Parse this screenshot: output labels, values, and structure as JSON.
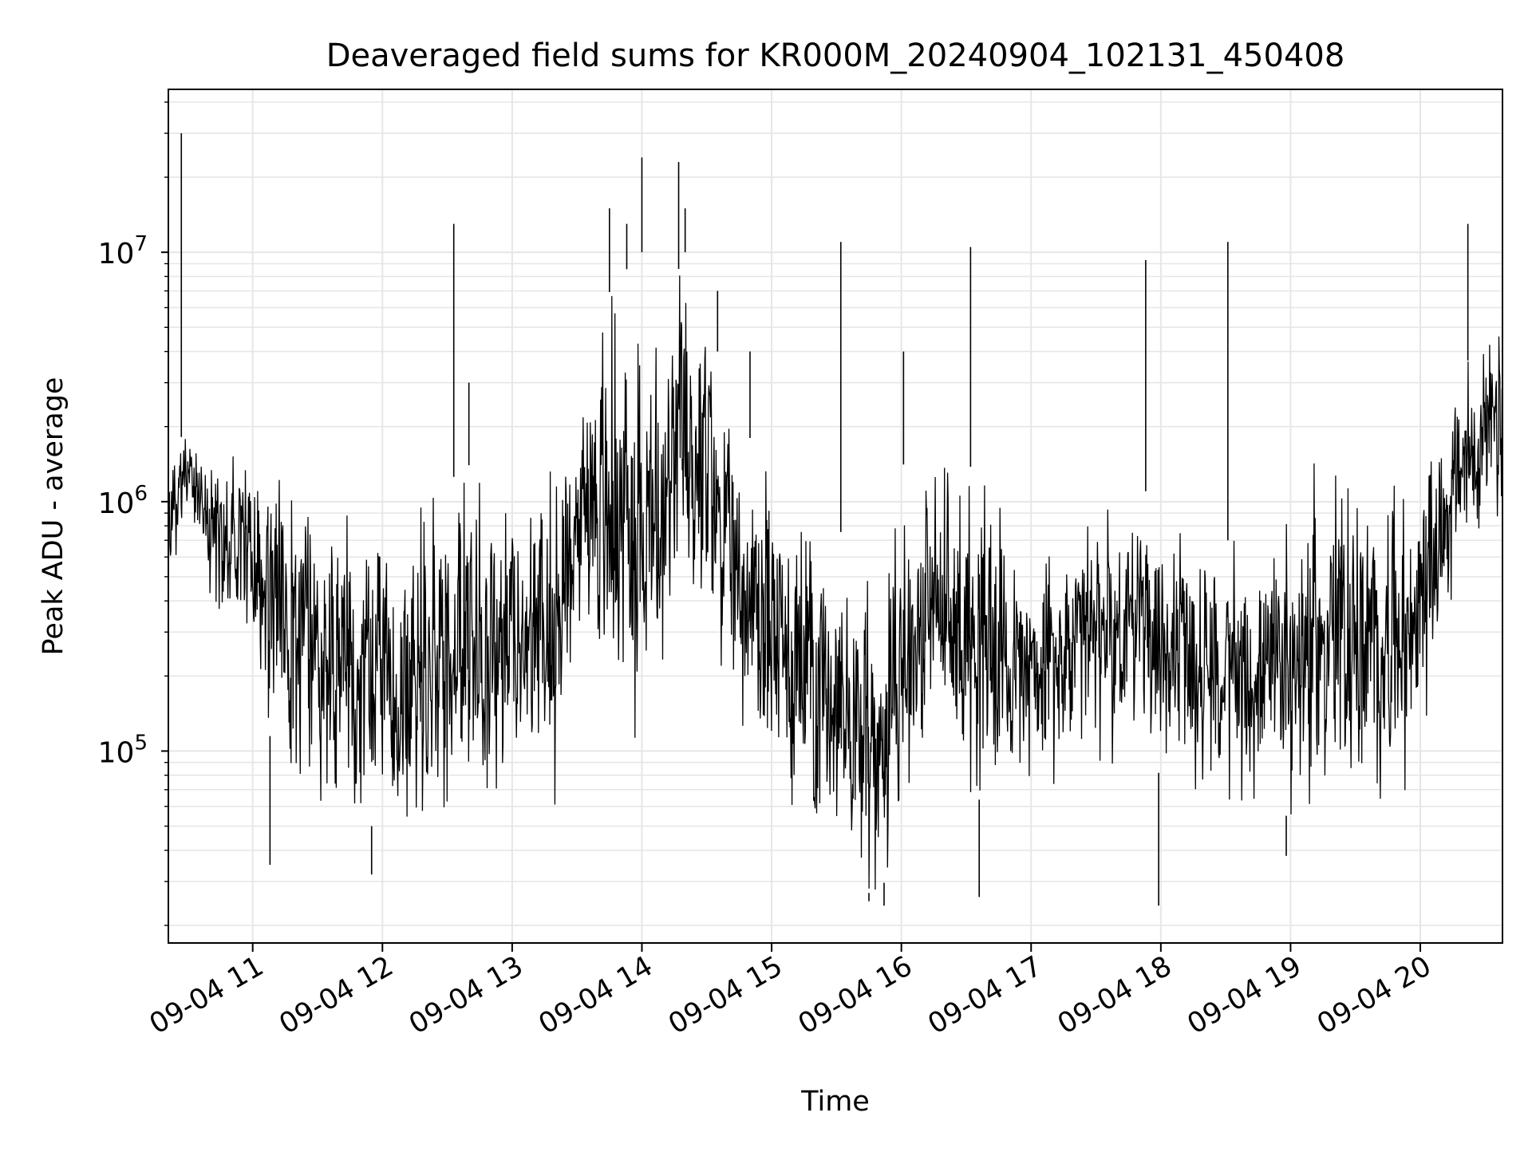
{
  "chart_data": {
    "type": "line",
    "title": "Deaveraged field sums for KR000M_20240904_102131_450408",
    "xlabel": "Time",
    "ylabel": "Peak ADU - average",
    "yscale": "log",
    "ylim": [
      17000,
      45000000
    ],
    "xlim": [
      "2024-09-04 10:21",
      "2024-09-04 20:38"
    ],
    "grid": true,
    "line_color": "#000000",
    "x_tick_labels": [
      "09-04 11",
      "09-04 12",
      "09-04 13",
      "09-04 14",
      "09-04 15",
      "09-04 16",
      "09-04 17",
      "09-04 18",
      "09-04 19",
      "09-04 20"
    ],
    "x_tick_values": [
      "2024-09-04 11:00",
      "2024-09-04 12:00",
      "2024-09-04 13:00",
      "2024-09-04 14:00",
      "2024-09-04 15:00",
      "2024-09-04 16:00",
      "2024-09-04 17:00",
      "2024-09-04 18:00",
      "2024-09-04 19:00",
      "2024-09-04 20:00"
    ],
    "y_ticks": [
      {
        "value": 100000,
        "base": "10",
        "exp": "5"
      },
      {
        "value": 1000000,
        "base": "10",
        "exp": "6"
      },
      {
        "value": 10000000,
        "base": "10",
        "exp": "7"
      }
    ],
    "series": [
      {
        "values_note_envelope": true,
        "x": [
          "2024-09-04 10:21",
          "2024-09-04 10:30",
          "2024-09-04 10:40",
          "2024-09-04 10:50",
          "2024-09-04 11:00",
          "2024-09-04 11:10",
          "2024-09-04 11:20",
          "2024-09-04 11:30",
          "2024-09-04 11:40",
          "2024-09-04 11:50",
          "2024-09-04 12:00",
          "2024-09-04 12:10",
          "2024-09-04 12:20",
          "2024-09-04 12:30",
          "2024-09-04 12:40",
          "2024-09-04 12:50",
          "2024-09-04 13:00",
          "2024-09-04 13:10",
          "2024-09-04 13:20",
          "2024-09-04 13:30",
          "2024-09-04 13:40",
          "2024-09-04 13:50",
          "2024-09-04 14:00",
          "2024-09-04 14:10",
          "2024-09-04 14:20",
          "2024-09-04 14:30",
          "2024-09-04 14:40",
          "2024-09-04 14:50",
          "2024-09-04 15:00",
          "2024-09-04 15:10",
          "2024-09-04 15:20",
          "2024-09-04 15:30",
          "2024-09-04 15:40",
          "2024-09-04 15:50",
          "2024-09-04 16:00",
          "2024-09-04 16:10",
          "2024-09-04 16:20",
          "2024-09-04 16:30",
          "2024-09-04 16:40",
          "2024-09-04 16:50",
          "2024-09-04 17:00",
          "2024-09-04 17:10",
          "2024-09-04 17:20",
          "2024-09-04 17:30",
          "2024-09-04 17:40",
          "2024-09-04 17:50",
          "2024-09-04 18:00",
          "2024-09-04 18:10",
          "2024-09-04 18:20",
          "2024-09-04 18:30",
          "2024-09-04 18:40",
          "2024-09-04 18:50",
          "2024-09-04 19:00",
          "2024-09-04 19:10",
          "2024-09-04 19:20",
          "2024-09-04 19:30",
          "2024-09-04 19:40",
          "2024-09-04 19:50",
          "2024-09-04 20:00",
          "2024-09-04 20:10",
          "2024-09-04 20:20",
          "2024-09-04 20:30",
          "2024-09-04 20:38"
        ],
        "low": [
          400000,
          1000000,
          400000,
          300000,
          200000,
          100000,
          50000,
          45000,
          50000,
          50000,
          50000,
          50000,
          50000,
          55000,
          60000,
          60000,
          60000,
          60000,
          60000,
          300000,
          200000,
          100000,
          100000,
          100000,
          300000,
          250000,
          200000,
          100000,
          60000,
          50000,
          45000,
          40000,
          28000,
          26000,
          50000,
          80000,
          80000,
          70000,
          60000,
          70000,
          60000,
          60000,
          70000,
          80000,
          90000,
          100000,
          80000,
          70000,
          60000,
          60000,
          60000,
          55000,
          55000,
          55000,
          60000,
          60000,
          60000,
          60000,
          100000,
          300000,
          500000,
          800000,
          700000
        ],
        "high": [
          1500000,
          2000000,
          1600000,
          1600000,
          1500000,
          1400000,
          1200000,
          1200000,
          1100000,
          1000000,
          900000,
          900000,
          1000000,
          1200000,
          1400000,
          1200000,
          1300000,
          1400000,
          1400000,
          3000000,
          6000000,
          8000000,
          10000000,
          6000000,
          10000000,
          8000000,
          2000000,
          1800000,
          1500000,
          1200000,
          1000000,
          800000,
          600000,
          400000,
          1400000,
          1500000,
          1500000,
          1400000,
          1300000,
          900000,
          700000,
          800000,
          900000,
          1000000,
          1000000,
          1200000,
          900000,
          800000,
          700000,
          700000,
          700000,
          700000,
          1000000,
          1500000,
          1400000,
          1300000,
          1200000,
          1300000,
          1700000,
          2500000,
          3500000,
          4500000,
          5000000
        ]
      }
    ],
    "spikes": [
      {
        "x": "2024-09-04 10:27",
        "y": 30000000
      },
      {
        "x": "2024-09-04 12:33",
        "y": 13000000
      },
      {
        "x": "2024-09-04 12:40",
        "y": 3000000
      },
      {
        "x": "2024-09-04 13:45",
        "y": 15000000
      },
      {
        "x": "2024-09-04 13:53",
        "y": 13000000
      },
      {
        "x": "2024-09-04 14:00",
        "y": 24000000
      },
      {
        "x": "2024-09-04 14:17",
        "y": 23000000
      },
      {
        "x": "2024-09-04 14:20",
        "y": 15000000
      },
      {
        "x": "2024-09-04 14:35",
        "y": 7000000
      },
      {
        "x": "2024-09-04 14:50",
        "y": 4000000
      },
      {
        "x": "2024-09-04 15:32",
        "y": 11000000
      },
      {
        "x": "2024-09-04 16:01",
        "y": 4000000
      },
      {
        "x": "2024-09-04 16:32",
        "y": 10500000
      },
      {
        "x": "2024-09-04 17:53",
        "y": 9300000
      },
      {
        "x": "2024-09-04 18:31",
        "y": 11000000
      },
      {
        "x": "2024-09-04 20:22",
        "y": 13000000
      }
    ],
    "dips": [
      {
        "x": "2024-09-04 15:45",
        "y": 25000
      },
      {
        "x": "2024-09-04 15:52",
        "y": 24000
      },
      {
        "x": "2024-09-04 16:36",
        "y": 26000
      },
      {
        "x": "2024-09-04 17:59",
        "y": 24000
      },
      {
        "x": "2024-09-04 11:08",
        "y": 35000
      },
      {
        "x": "2024-09-04 11:55",
        "y": 32000
      },
      {
        "x": "2024-09-04 18:58",
        "y": 38000
      }
    ]
  }
}
